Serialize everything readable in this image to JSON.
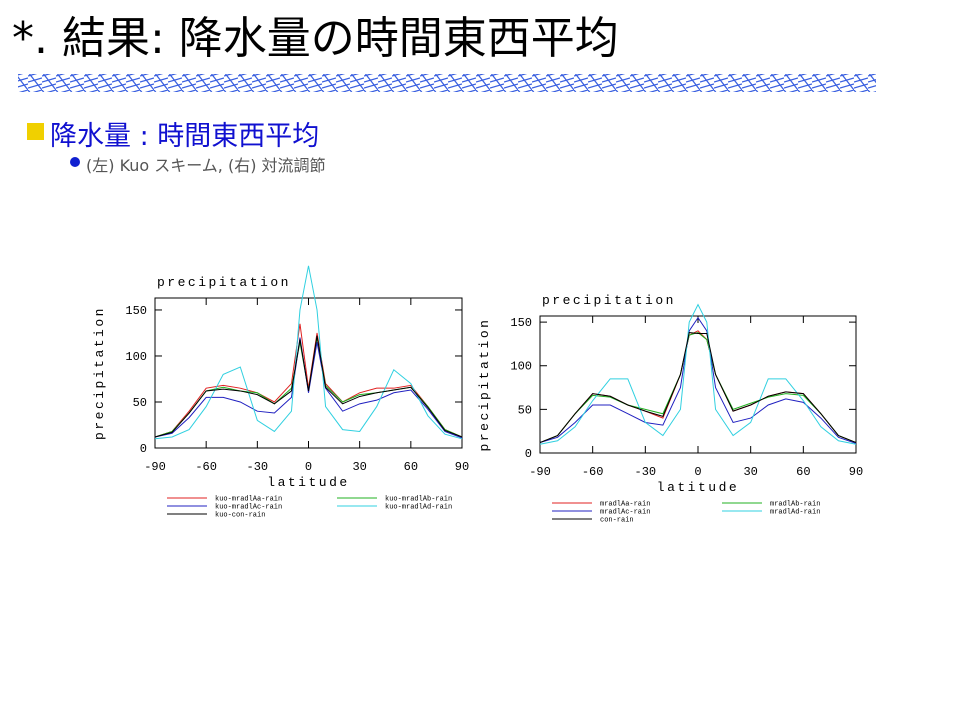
{
  "header": {
    "title": "*. 結果: 降水量の時間東西平均",
    "subtitle": "降水量 : 時間東西平均",
    "bullet": "(左) Kuo スキーム, (右) 対流調節"
  },
  "chart_data": [
    {
      "type": "line",
      "title": "precipitation",
      "x_label": "latitude",
      "y_label": "precipitation",
      "xlim": [
        -90,
        90
      ],
      "xticks": [
        -90,
        -60,
        -30,
        0,
        30,
        60,
        90
      ],
      "ylim": [
        0,
        163
      ],
      "yticks": [
        0,
        50,
        100,
        150
      ],
      "x": [
        -90,
        -80,
        -70,
        -60,
        -50,
        -40,
        -30,
        -20,
        -10,
        -5,
        0,
        5,
        10,
        20,
        30,
        40,
        50,
        60,
        70,
        80,
        90
      ],
      "series": [
        {
          "name": "kuo-mradlAa-rain",
          "color": "#e02020",
          "values": [
            12,
            18,
            40,
            65,
            68,
            65,
            60,
            50,
            70,
            135,
            65,
            125,
            70,
            50,
            60,
            65,
            65,
            68,
            45,
            20,
            12
          ]
        },
        {
          "name": "kuo-mradlAb-rain",
          "color": "#20b020",
          "values": [
            12,
            18,
            38,
            62,
            66,
            62,
            60,
            48,
            65,
            115,
            62,
            120,
            68,
            50,
            58,
            60,
            63,
            66,
            45,
            20,
            12
          ]
        },
        {
          "name": "kuo-mradlAc-rain",
          "color": "#2020c0",
          "values": [
            12,
            16,
            33,
            55,
            55,
            50,
            40,
            38,
            55,
            120,
            60,
            115,
            65,
            40,
            48,
            52,
            60,
            63,
            42,
            18,
            11
          ]
        },
        {
          "name": "kuo-mradlAd-rain",
          "color": "#30d0e0",
          "values": [
            10,
            12,
            20,
            45,
            80,
            88,
            30,
            18,
            40,
            150,
            198,
            150,
            45,
            20,
            18,
            45,
            85,
            70,
            35,
            15,
            10
          ]
        },
        {
          "name": "kuo-con-rain",
          "color": "#000000",
          "values": [
            12,
            17,
            38,
            62,
            64,
            62,
            58,
            48,
            62,
            118,
            62,
            122,
            66,
            48,
            56,
            60,
            63,
            66,
            44,
            19,
            12
          ]
        }
      ]
    },
    {
      "type": "line",
      "title": "precipitation",
      "x_label": "latitude",
      "y_label": "precipitation",
      "xlim": [
        -90,
        90
      ],
      "xticks": [
        -90,
        -60,
        -30,
        0,
        30,
        60,
        90
      ],
      "ylim": [
        0,
        157
      ],
      "yticks": [
        0,
        50,
        100,
        150
      ],
      "x": [
        -90,
        -80,
        -70,
        -60,
        -50,
        -40,
        -30,
        -20,
        -10,
        -5,
        0,
        5,
        10,
        20,
        30,
        40,
        50,
        60,
        70,
        80,
        90
      ],
      "series": [
        {
          "name": "mradlAa-rain",
          "color": "#e02020",
          "values": [
            12,
            20,
            45,
            68,
            65,
            55,
            48,
            40,
            90,
            135,
            140,
            130,
            90,
            48,
            55,
            65,
            70,
            68,
            45,
            20,
            12
          ]
        },
        {
          "name": "mradlAb-rain",
          "color": "#20b020",
          "values": [
            12,
            20,
            45,
            66,
            64,
            55,
            50,
            45,
            90,
            135,
            138,
            130,
            90,
            50,
            57,
            64,
            68,
            66,
            45,
            20,
            12
          ]
        },
        {
          "name": "mradlAc-rain",
          "color": "#2020c0",
          "values": [
            12,
            18,
            35,
            55,
            55,
            45,
            35,
            32,
            75,
            140,
            155,
            140,
            75,
            35,
            40,
            55,
            62,
            58,
            40,
            18,
            11
          ]
        },
        {
          "name": "mradlAd-rain",
          "color": "#30d0e0",
          "values": [
            10,
            14,
            30,
            60,
            85,
            85,
            35,
            20,
            50,
            150,
            170,
            150,
            50,
            20,
            35,
            85,
            85,
            60,
            30,
            14,
            10
          ]
        },
        {
          "name": "con-rain",
          "color": "#000000",
          "values": [
            12,
            20,
            45,
            68,
            65,
            55,
            48,
            42,
            90,
            138,
            137,
            137,
            90,
            48,
            55,
            65,
            70,
            68,
            45,
            20,
            12
          ]
        }
      ]
    }
  ]
}
